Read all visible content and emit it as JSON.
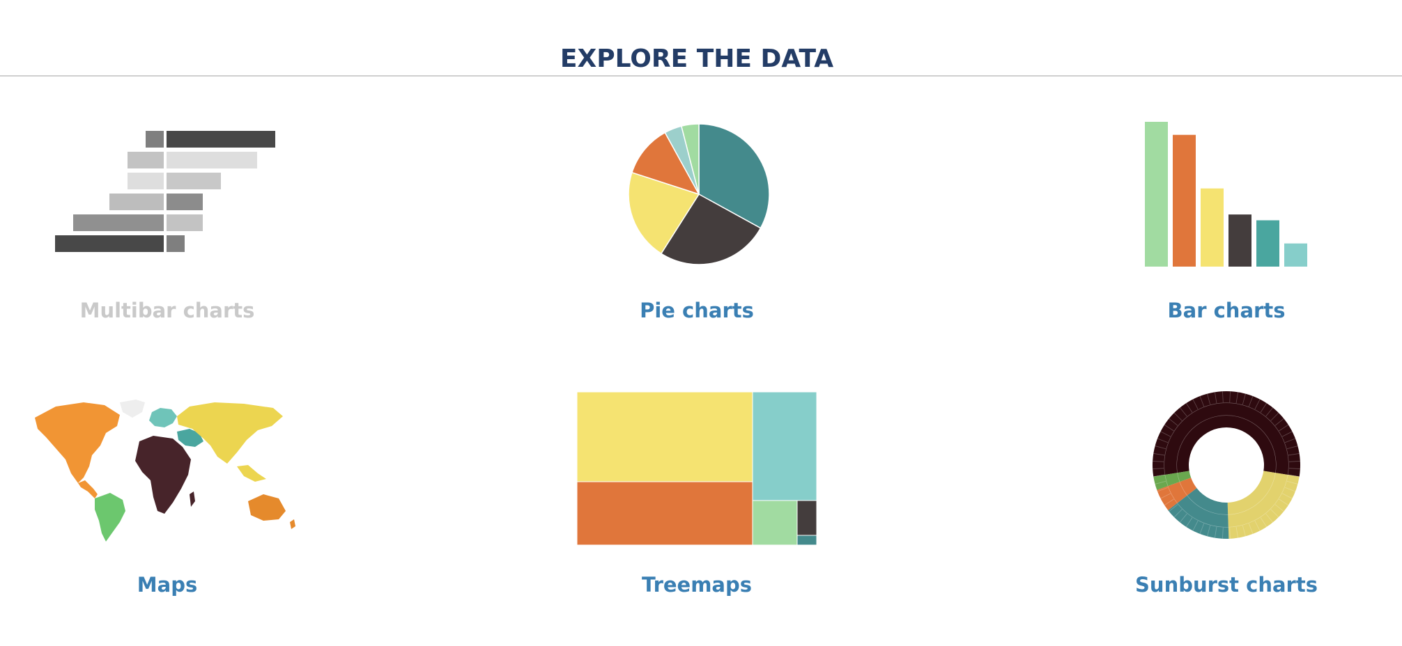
{
  "header": {
    "title": "EXPLORE THE DATA"
  },
  "tiles": [
    {
      "label": "Multibar charts",
      "state": "inactive"
    },
    {
      "label": "Pie charts",
      "state": "active"
    },
    {
      "label": "Bar charts",
      "state": "active"
    },
    {
      "label": "Maps",
      "state": "active"
    },
    {
      "label": "Treemaps",
      "state": "active"
    },
    {
      "label": "Sunburst charts",
      "state": "active"
    }
  ],
  "colors": {
    "title": "#233c66",
    "link": "#3a7fb3",
    "link_inactive": "#c9c9c9",
    "divider": "#cfcfcf",
    "teal": "#448a8c",
    "dark": "#443d3d",
    "yellow": "#f5e371",
    "orange": "#e0763b",
    "light_teal": "#9ccfcb",
    "light_green": "#a1dba1",
    "aqua": "#86ceca",
    "mid_teal": "#4aa69f"
  },
  "thumbnails": {
    "multibar": {
      "left_values": [
        1,
        2,
        2,
        3,
        5,
        6
      ],
      "right_values": [
        6,
        5,
        3,
        2,
        2,
        1
      ]
    },
    "pie": {
      "values": [
        33,
        26,
        21,
        12,
        4,
        4
      ]
    },
    "bar": {
      "values": [
        100,
        91,
        54,
        36,
        32,
        16
      ]
    },
    "treemap": {
      "values": [
        40,
        27,
        14,
        10,
        6,
        3
      ]
    },
    "sunburst": {
      "values": [
        55,
        22,
        15,
        5,
        3
      ]
    }
  }
}
